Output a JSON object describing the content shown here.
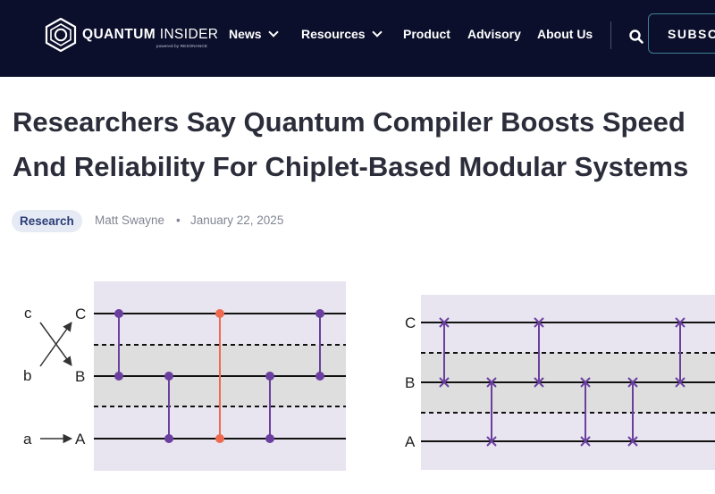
{
  "header": {
    "brand_bold": "QUANTUM",
    "brand_light": "INSIDER",
    "brand_tagline": "powered by RESONANCE",
    "nav": [
      {
        "label": "News",
        "has_dropdown": true
      },
      {
        "label": "Resources",
        "has_dropdown": true
      },
      {
        "label": "Product",
        "has_dropdown": false
      },
      {
        "label": "Advisory",
        "has_dropdown": false
      },
      {
        "label": "About Us",
        "has_dropdown": false
      }
    ],
    "search_icon": "search-icon",
    "subscribe_label": "SUBSC"
  },
  "article": {
    "title": "Researchers Say Quantum Compiler Boosts Speed And Reliability For Chiplet-Based Modular Systems",
    "category": "Research",
    "author": "Matt Swayne",
    "separator": "•",
    "date": "January 22, 2025"
  },
  "figure": {
    "left_panel": {
      "mapping_left": [
        "c",
        "b",
        "a"
      ],
      "qubits": [
        "C",
        "B",
        "A"
      ]
    },
    "right_panel": {
      "qubits": [
        "C",
        "B",
        "A"
      ]
    },
    "colors": {
      "panel_bg": "#e8e4f0",
      "module_band": "#dedede",
      "gate_purple": "#6a3fa0",
      "gate_orange": "#ef6a4f",
      "header_bg": "#0b0f2b"
    }
  }
}
